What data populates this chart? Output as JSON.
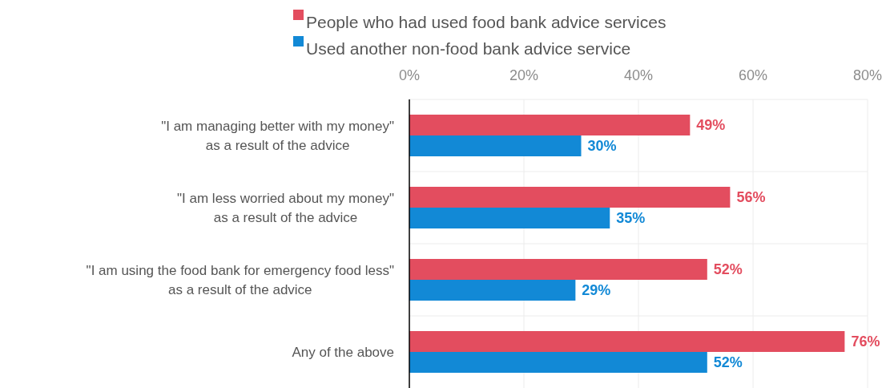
{
  "chart_data": {
    "type": "bar",
    "orientation": "horizontal",
    "categories": [
      "\"I am managing better with my money\"\nas a result of the advice",
      "\"I am less worried about my money\"\nas a result of the advice",
      "\"I am using the food bank for emergency food less\"\nas a result of the advice",
      "Any of the above"
    ],
    "series": [
      {
        "name": "People who had used food bank advice services",
        "color": "#e34d5f",
        "values": [
          49,
          56,
          52,
          76
        ],
        "value_labels": [
          "49%",
          "56%",
          "52%",
          "76%"
        ]
      },
      {
        "name": "Used another non-food bank advice service",
        "color": "#1289d6",
        "values": [
          30,
          35,
          29,
          52
        ],
        "value_labels": [
          "30%",
          "35%",
          "29%",
          "52%"
        ]
      }
    ],
    "xlim": [
      0,
      80
    ],
    "xticks": [
      {
        "value": 0,
        "label": "0%"
      },
      {
        "value": 20,
        "label": "20%"
      },
      {
        "value": 40,
        "label": "40%"
      },
      {
        "value": 60,
        "label": "60%"
      },
      {
        "value": 80,
        "label": "80%"
      }
    ],
    "grid": true,
    "legend": "top"
  }
}
